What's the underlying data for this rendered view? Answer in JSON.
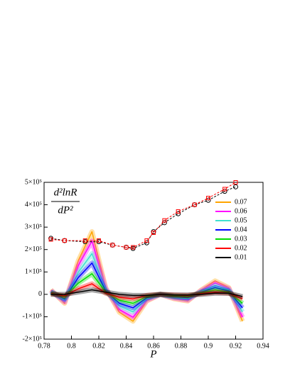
{
  "chart_data": {
    "type": "line",
    "ylabel_numerator": "d²lnR",
    "ylabel_denominator": "dP²",
    "xlabel": "P",
    "xlim": [
      0.78,
      0.94
    ],
    "xticks": [
      0.78,
      0.8,
      0.82,
      0.84,
      0.86,
      0.88,
      0.9,
      0.92,
      0.94
    ],
    "ylim": [
      -200000,
      500000
    ],
    "yticks": [
      {
        "value": -200000,
        "label": "-2×10⁵"
      },
      {
        "value": -100000,
        "label": "-1×10⁵"
      },
      0,
      {
        "value": 100000,
        "label": "1×10⁵"
      },
      {
        "value": 200000,
        "label": "2×10⁵"
      },
      {
        "value": 300000,
        "label": "3×10⁵"
      },
      {
        "value": 400000,
        "label": "4×10⁵"
      },
      {
        "value": 500000,
        "label": "5×10⁵"
      }
    ],
    "legend": "upper right",
    "x": [
      0.785,
      0.795,
      0.805,
      0.815,
      0.825,
      0.835,
      0.845,
      0.855,
      0.865,
      0.875,
      0.885,
      0.895,
      0.905,
      0.915,
      0.925
    ],
    "series": [
      {
        "name": "0.07",
        "color": "#ffa500",
        "values": [
          20000,
          -40000,
          150000,
          280000,
          30000,
          -80000,
          -120000,
          -30000,
          0,
          -20000,
          -30000,
          20000,
          60000,
          30000,
          -120000
        ]
      },
      {
        "name": "0.06",
        "color": "#ff00ff",
        "values": [
          17000,
          -34000,
          128000,
          238000,
          26000,
          -68000,
          -102000,
          -26000,
          0,
          -17000,
          -26000,
          17000,
          51000,
          26000,
          -102000
        ]
      },
      {
        "name": "0.05",
        "color": "#40e0d0",
        "values": [
          13000,
          -26000,
          98000,
          182000,
          20000,
          -52000,
          -78000,
          -20000,
          0,
          -13000,
          -20000,
          13000,
          39000,
          20000,
          -78000
        ]
      },
      {
        "name": "0.04",
        "color": "#0000ff",
        "values": [
          10000,
          -20000,
          75000,
          140000,
          15000,
          -40000,
          -60000,
          -15000,
          0,
          -10000,
          -15000,
          10000,
          30000,
          15000,
          -60000
        ]
      },
      {
        "name": "0.03",
        "color": "#00dd00",
        "values": [
          7000,
          -13000,
          50000,
          92000,
          10000,
          -26000,
          -40000,
          -10000,
          0,
          -7000,
          -10000,
          7000,
          20000,
          10000,
          -40000
        ]
      },
      {
        "name": "0.02",
        "color": "#ff0000",
        "values": [
          3000,
          -7000,
          25000,
          47000,
          5000,
          -13000,
          -20000,
          -5000,
          0,
          -3000,
          -5000,
          3000,
          10000,
          5000,
          -20000
        ]
      },
      {
        "name": "0.01",
        "color": "#000000",
        "values": [
          0,
          0,
          10000,
          20000,
          10000,
          0,
          -5000,
          -5000,
          0,
          -3000,
          -3000,
          0,
          5000,
          5000,
          -10000
        ]
      }
    ],
    "marker_series": [
      {
        "color": "#000000",
        "marker": "circle",
        "x": [
          0.785,
          0.795,
          0.81,
          0.82,
          0.83,
          0.84,
          0.845,
          0.855,
          0.86,
          0.868,
          0.878,
          0.89,
          0.9,
          0.912,
          0.92
        ],
        "values": [
          250000,
          240000,
          235000,
          235000,
          220000,
          210000,
          205000,
          230000,
          280000,
          320000,
          360000,
          400000,
          420000,
          460000,
          480000
        ]
      },
      {
        "color": "#ff0000",
        "marker": "square",
        "x": [
          0.785,
          0.795,
          0.81,
          0.82,
          0.83,
          0.84,
          0.845,
          0.855,
          0.86,
          0.868,
          0.878,
          0.89,
          0.9,
          0.912,
          0.92
        ],
        "values": [
          245000,
          240000,
          240000,
          240000,
          220000,
          210000,
          210000,
          240000,
          275000,
          330000,
          370000,
          400000,
          430000,
          470000,
          500000
        ]
      }
    ]
  }
}
